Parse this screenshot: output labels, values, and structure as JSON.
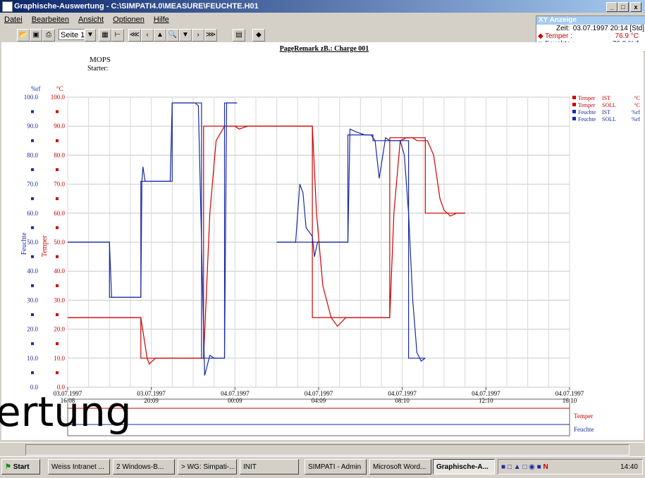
{
  "window": {
    "title": "Graphische-Auswertung - C:\\SIMPATI4.0\\MEASURE\\FEUCHTE.H01",
    "min": "_",
    "max": "□",
    "close": "x"
  },
  "menu": [
    "Datei",
    "Bearbeiten",
    "Ansicht",
    "Optionen",
    "Hilfe"
  ],
  "toolbar": {
    "page_select": "Seite 1"
  },
  "xy_panel": {
    "title": "XY Anzeige",
    "time_label": "Zeit:",
    "time_value": "03.07.1997 20:14 [Std]",
    "temp_label": "Temper :",
    "temp_value": "76.9 °C",
    "hum_label": "Feuchte :",
    "hum_value": "76.9 %rf"
  },
  "chart_header": {
    "remark": "PageRemark zB.: Charge 001",
    "mops": "MOPS",
    "starter": "Starter:"
  },
  "chart_data": {
    "type": "line",
    "left_axis": {
      "label": "Feuchte",
      "unit": "%rf",
      "range": [
        0,
        100
      ],
      "ticks": [
        "100.0",
        "90.0",
        "80.0",
        "70.0",
        "60.0",
        "50.0",
        "40.0",
        "30.0",
        "20.0",
        "10.0",
        "0.0"
      ]
    },
    "right_axis": {
      "label": "Temper",
      "unit": "°C",
      "range": [
        0,
        100
      ],
      "ticks": [
        "100.0",
        "90.0",
        "80.0",
        "70.0",
        "60.0",
        "50.0",
        "40.0",
        "30.0",
        "20.0",
        "10.0",
        "0.0"
      ]
    },
    "x_ticks": [
      {
        "date": "03.07.1997",
        "time": "16:08"
      },
      {
        "date": "03.07.1997",
        "time": "20:09"
      },
      {
        "date": "04.07.1997",
        "time": "00:09"
      },
      {
        "date": "04.07.1997",
        "time": "04:09"
      },
      {
        "date": "04.07.1997",
        "time": "08:10"
      },
      {
        "date": "04.07.1997",
        "time": "12:10"
      },
      {
        "date": "04.07.1997",
        "time": "16:10"
      }
    ],
    "x_hours_range": [
      0,
      24
    ],
    "grid": true,
    "legend_position": "right",
    "series": [
      {
        "name": "Temper  IST",
        "unit": "°C",
        "color": "#cc0000",
        "points": [
          [
            0,
            24
          ],
          [
            3.5,
            24
          ],
          [
            3.5,
            24
          ],
          [
            3.8,
            10
          ],
          [
            3.9,
            8
          ],
          [
            4.2,
            10
          ],
          [
            6.4,
            10
          ],
          [
            6.5,
            10
          ],
          [
            6.8,
            60
          ],
          [
            7.1,
            85
          ],
          [
            7.5,
            90
          ],
          [
            8,
            90
          ],
          [
            8.2,
            89
          ],
          [
            8.6,
            90
          ],
          [
            9.0,
            90
          ],
          [
            10.0,
            90
          ],
          [
            null,
            null
          ],
          [
            10.0,
            90
          ],
          [
            11.7,
            90
          ],
          [
            11.9,
            60
          ],
          [
            12.2,
            35
          ],
          [
            12.6,
            24
          ],
          [
            12.9,
            21
          ],
          [
            13.3,
            24
          ],
          [
            15.2,
            24
          ],
          [
            15.4,
            24
          ],
          [
            15.6,
            60
          ],
          [
            15.9,
            85
          ],
          [
            16.2,
            86
          ],
          [
            16.5,
            86
          ],
          [
            16.7,
            85
          ],
          [
            17.2,
            85
          ],
          [
            17.5,
            80
          ],
          [
            17.8,
            65
          ],
          [
            18.0,
            61
          ],
          [
            18.3,
            59
          ],
          [
            18.6,
            60
          ],
          [
            19.0,
            60
          ]
        ]
      },
      {
        "name": "Temper  SOLL",
        "unit": "°C",
        "color": "#cc0000",
        "points": [
          [
            0,
            24
          ],
          [
            3.5,
            24
          ],
          [
            3.5,
            10
          ],
          [
            6.5,
            10
          ],
          [
            6.5,
            90
          ],
          [
            10.0,
            90
          ],
          [
            null,
            null
          ],
          [
            10.0,
            90
          ],
          [
            11.7,
            90
          ],
          [
            11.7,
            24
          ],
          [
            15.4,
            24
          ],
          [
            15.4,
            86
          ],
          [
            17.1,
            86
          ],
          [
            17.1,
            60
          ],
          [
            19.0,
            60
          ]
        ]
      },
      {
        "name": "Feuchte  IST",
        "unit": "%rf",
        "color": "#1a2aa0",
        "points": [
          [
            0,
            50
          ],
          [
            2.0,
            50
          ],
          [
            2.1,
            31
          ],
          [
            3.5,
            31
          ],
          [
            3.55,
            71
          ],
          [
            3.6,
            76
          ],
          [
            3.7,
            71
          ],
          [
            4.9,
            71
          ],
          [
            5.0,
            98
          ],
          [
            6.1,
            98
          ],
          [
            6.25,
            97
          ],
          [
            6.4,
            50
          ],
          [
            6.55,
            4
          ],
          [
            6.8,
            11
          ],
          [
            7.0,
            10
          ],
          [
            7.5,
            10
          ],
          [
            7.6,
            98
          ],
          [
            8.1,
            98
          ],
          [
            null,
            null
          ],
          [
            10.0,
            50
          ],
          [
            10.9,
            50
          ],
          [
            11.0,
            60
          ],
          [
            11.1,
            70
          ],
          [
            11.25,
            67
          ],
          [
            11.4,
            55
          ],
          [
            11.7,
            52
          ],
          [
            11.8,
            45
          ],
          [
            11.95,
            50
          ],
          [
            13.3,
            50
          ],
          [
            13.4,
            50
          ],
          [
            13.5,
            89
          ],
          [
            13.8,
            88
          ],
          [
            14.2,
            87
          ],
          [
            14.5,
            87
          ],
          [
            14.7,
            85
          ],
          [
            14.9,
            72
          ],
          [
            15.2,
            86
          ],
          [
            15.4,
            85
          ],
          [
            15.7,
            85
          ],
          [
            15.9,
            85
          ],
          [
            16.1,
            80
          ],
          [
            16.3,
            60
          ],
          [
            16.5,
            30
          ],
          [
            16.7,
            12
          ],
          [
            16.9,
            9
          ],
          [
            17.1,
            10
          ]
        ]
      },
      {
        "name": "Feuchte  SOLL",
        "unit": "%rf",
        "color": "#1a2aa0",
        "points": [
          [
            0,
            50
          ],
          [
            2.0,
            50
          ],
          [
            2.0,
            31
          ],
          [
            3.5,
            31
          ],
          [
            3.5,
            71
          ],
          [
            5.0,
            71
          ],
          [
            5.0,
            98
          ],
          [
            6.4,
            98
          ],
          [
            6.4,
            10
          ],
          [
            7.5,
            10
          ],
          [
            7.5,
            98
          ],
          [
            8.1,
            98
          ],
          [
            null,
            null
          ],
          [
            10.0,
            50
          ],
          [
            13.4,
            50
          ],
          [
            13.4,
            87
          ],
          [
            14.6,
            87
          ],
          [
            14.6,
            85
          ],
          [
            16.3,
            85
          ],
          [
            16.3,
            10
          ],
          [
            17.1,
            10
          ]
        ]
      }
    ],
    "legend": [
      {
        "name": "Temper",
        "status": "IST",
        "unit": "°C",
        "color": "#cc0000"
      },
      {
        "name": "Temper",
        "status": "SOLL",
        "unit": "°C",
        "color": "#cc0000"
      },
      {
        "name": "Feuchte",
        "status": "IST",
        "unit": "%rf",
        "color": "#1a2aa0"
      },
      {
        "name": "Feuchte",
        "status": "SOLL",
        "unit": "%rf",
        "color": "#1a2aa0"
      }
    ],
    "mini_legend": [
      "Temper",
      "Feuchte"
    ]
  },
  "overlay_text": "ertung",
  "taskbar": {
    "start": "Start",
    "tasks": [
      "Weiss Intranet ...",
      "2 Windows-B...",
      "> WG: Simpati-...",
      "INIT",
      "SIMPATI - Admin",
      "Microsoft Word...",
      "Graphische-A..."
    ],
    "clock": "14:40"
  }
}
